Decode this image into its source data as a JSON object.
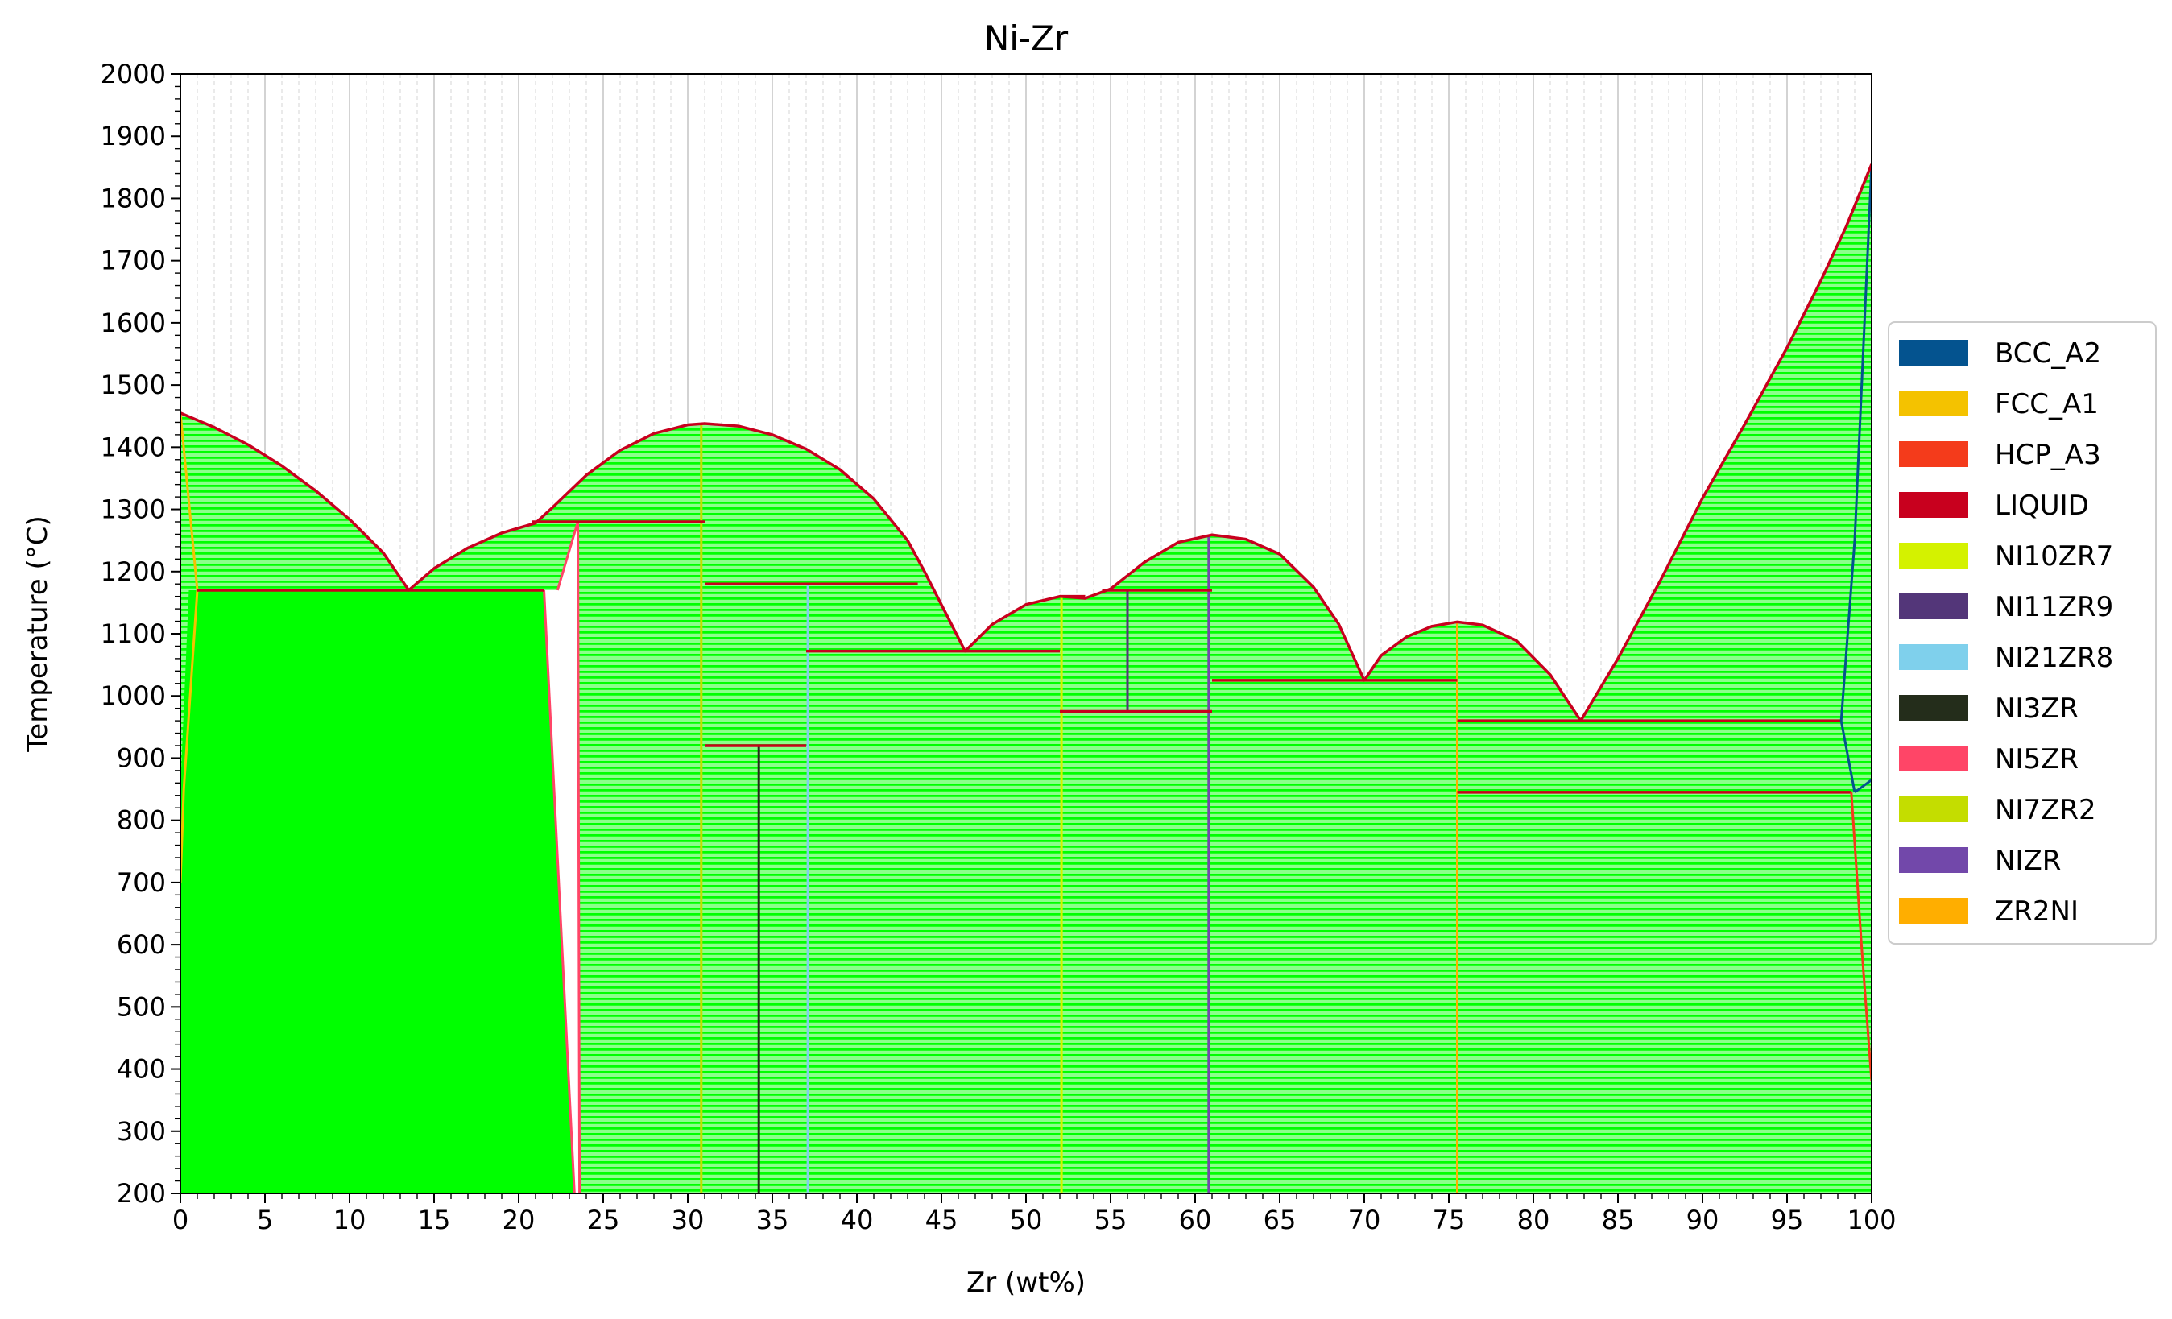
{
  "chart_data": {
    "type": "area",
    "title": "Ni-Zr",
    "xlabel": "Zr (wt%)",
    "ylabel": "Temperature (°C)",
    "xlim": [
      0,
      100
    ],
    "ylim": [
      200,
      2000
    ],
    "x_ticks": [
      0,
      5,
      10,
      15,
      20,
      25,
      30,
      35,
      40,
      45,
      50,
      55,
      60,
      65,
      70,
      75,
      80,
      85,
      90,
      95,
      100
    ],
    "y_ticks": [
      200,
      300,
      400,
      500,
      600,
      700,
      800,
      900,
      1000,
      1100,
      1200,
      1300,
      1400,
      1500,
      1600,
      1700,
      1800,
      1900,
      2000
    ],
    "grid": true,
    "legend_placement": "right",
    "fill_color": "#00ff00",
    "legend": [
      {
        "name": "BCC_A2",
        "color": "#04538f"
      },
      {
        "name": "FCC_A1",
        "color": "#f4c200"
      },
      {
        "name": "HCP_A3",
        "color": "#f43b1b"
      },
      {
        "name": "LIQUID",
        "color": "#c8001e"
      },
      {
        "name": "NI10ZR7",
        "color": "#d4f200"
      },
      {
        "name": "NI11ZR9",
        "color": "#533679"
      },
      {
        "name": "NI21ZR8",
        "color": "#7fd0ec"
      },
      {
        "name": "NI3ZR",
        "color": "#242d1b"
      },
      {
        "name": "NI5ZR",
        "color": "#ff4567"
      },
      {
        "name": "NI7ZR2",
        "color": "#c4dd00"
      },
      {
        "name": "NIZR",
        "color": "#7248aa"
      },
      {
        "name": "ZR2NI",
        "color": "#ffae00"
      }
    ],
    "liquidus": [
      [
        0,
        1455
      ],
      [
        2,
        1432
      ],
      [
        4,
        1404
      ],
      [
        6,
        1370
      ],
      [
        8,
        1330
      ],
      [
        10,
        1284
      ],
      [
        12,
        1230
      ],
      [
        13.5,
        1170
      ],
      [
        15,
        1205
      ],
      [
        17,
        1238
      ],
      [
        19,
        1262
      ],
      [
        21,
        1278
      ],
      [
        22,
        1303
      ],
      [
        24,
        1355
      ],
      [
        26,
        1395
      ],
      [
        28,
        1422
      ],
      [
        30,
        1436
      ],
      [
        31,
        1438
      ],
      [
        33,
        1434
      ],
      [
        35,
        1420
      ],
      [
        37,
        1397
      ],
      [
        39,
        1364
      ],
      [
        41,
        1317
      ],
      [
        43,
        1250
      ],
      [
        44,
        1200
      ],
      [
        46.4,
        1072
      ],
      [
        48,
        1115
      ],
      [
        50,
        1147
      ],
      [
        52,
        1160
      ],
      [
        53.5,
        1157
      ],
      [
        55,
        1172
      ],
      [
        57,
        1215
      ],
      [
        59,
        1247
      ],
      [
        61,
        1259
      ],
      [
        63,
        1252
      ],
      [
        65,
        1228
      ],
      [
        67,
        1175
      ],
      [
        68.5,
        1115
      ],
      [
        70,
        1025
      ],
      [
        71,
        1065
      ],
      [
        72.5,
        1095
      ],
      [
        74,
        1112
      ],
      [
        75.5,
        1119
      ],
      [
        77,
        1114
      ],
      [
        79,
        1089
      ],
      [
        81,
        1034
      ],
      [
        82.8,
        960
      ],
      [
        85,
        1060
      ],
      [
        87.5,
        1185
      ],
      [
        90,
        1318
      ],
      [
        92.5,
        1437
      ],
      [
        95,
        1560
      ],
      [
        97,
        1668
      ],
      [
        98.5,
        1755
      ],
      [
        100,
        1855
      ]
    ],
    "bcc_boundaries": [
      [
        [
          98.2,
          960
        ],
        [
          99,
          1250
        ],
        [
          100,
          1855
        ]
      ],
      [
        [
          98.2,
          960
        ],
        [
          99,
          845
        ]
      ],
      [
        [
          99,
          845
        ],
        [
          100,
          865
        ]
      ]
    ],
    "hcp_boundary": [
      [
        98.8,
        845
      ],
      [
        99.4,
        600
      ],
      [
        100,
        380
      ]
    ],
    "fcc_boundaries": [
      [
        [
          0,
          1455
        ],
        [
          1,
          1170
        ]
      ],
      [
        [
          1,
          1170
        ],
        [
          0.2,
          850
        ],
        [
          0,
          700
        ]
      ]
    ],
    "three_phase_lines": [
      {
        "x": [
          1,
          21.5
        ],
        "t": 1170
      },
      {
        "x": [
          20.8,
          31
        ],
        "t": 1280
      },
      {
        "x": [
          31,
          43.6
        ],
        "t": 1180
      },
      {
        "x": [
          31,
          37
        ],
        "t": 920
      },
      {
        "x": [
          37,
          46.4
        ],
        "t": 1072
      },
      {
        "x": [
          46.4,
          52
        ],
        "t": 1072
      },
      {
        "x": [
          52,
          53.5
        ],
        "t": 1160
      },
      {
        "x": [
          54.5,
          61
        ],
        "t": 1170
      },
      {
        "x": [
          52,
          61
        ],
        "t": 975
      },
      {
        "x": [
          61,
          75.5
        ],
        "t": 1025
      },
      {
        "x": [
          75.5,
          98.2
        ],
        "t": 960
      },
      {
        "x": [
          75.5,
          98.8
        ],
        "t": 845
      }
    ],
    "compound_lines": [
      {
        "name": "NI5ZR",
        "color": "#ff4567",
        "points": [
          [
            21.5,
            1170
          ],
          [
            23.3,
            200
          ]
        ],
        "points2": [
          [
            22.3,
            1170
          ],
          [
            23.5,
            1280
          ],
          [
            23.6,
            200
          ]
        ]
      },
      {
        "name": "NI7ZR2",
        "color": "#c4dd00",
        "x": 30.8,
        "t": [
          200,
          1438
        ]
      },
      {
        "name": "NI3ZR",
        "color": "#242d1b",
        "x": 34.2,
        "t": [
          200,
          920
        ]
      },
      {
        "name": "NI21ZR8",
        "color": "#7fd0ec",
        "x": 37.1,
        "t": [
          200,
          1180
        ]
      },
      {
        "name": "NI10ZR7",
        "color": "#d4f200",
        "x": 52.1,
        "t": [
          200,
          1160
        ]
      },
      {
        "name": "NI11ZR9",
        "color": "#533679",
        "x": 56,
        "t": [
          975,
          1170
        ]
      },
      {
        "name": "NIZR",
        "color": "#7248aa",
        "x": 60.8,
        "t": [
          200,
          1259
        ]
      },
      {
        "name": "ZR2NI",
        "color": "#ffae00",
        "x": 75.5,
        "t": [
          200,
          1119
        ]
      }
    ],
    "solid_region": {
      "x": [
        0.5,
        21.5,
        23.3
      ],
      "t_top": 1170
    }
  }
}
